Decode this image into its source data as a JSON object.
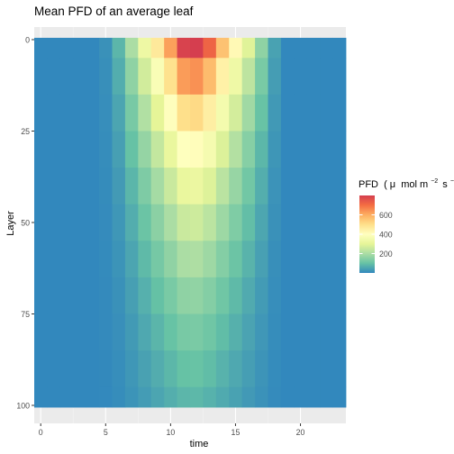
{
  "chart_data": {
    "type": "heatmap",
    "title": "Mean PFD of an average leaf",
    "xlabel": "time",
    "ylabel": "Layer",
    "x_ticks": [
      "0",
      "5",
      "10",
      "15",
      "20"
    ],
    "y_ticks": [
      "0",
      "25",
      "50",
      "75",
      "100"
    ],
    "legend": {
      "title_main": "PFD",
      "title_unit_prefix": "(",
      "title_unit_mu": "μ",
      "title_unit_mol": "mol m",
      "title_sup_m": "−2",
      "title_unit_s": "s",
      "title_sup_s": "−1",
      "title_unit_suffix": ")",
      "ticks": [
        {
          "label": "200",
          "value": 200
        },
        {
          "label": "400",
          "value": 400
        },
        {
          "label": "600",
          "value": 600
        }
      ],
      "range": [
        0,
        800
      ],
      "placement": "right"
    },
    "xlim": [
      -0.5,
      23.5
    ],
    "ylim": [
      0,
      100
    ],
    "y_reversed": true,
    "grid": true,
    "colors": {
      "panel_bg": "#ebebeb",
      "grid_major": "#ffffff",
      "grid_minor": "#f3f3f3",
      "scale": [
        "#3288bd",
        "#66c2a5",
        "#abdda4",
        "#e6f598",
        "#ffffbf",
        "#fee08b",
        "#fdae61",
        "#f46d43",
        "#d53e4f"
      ]
    },
    "time": [
      0,
      1,
      2,
      3,
      4,
      5,
      6,
      7,
      8,
      9,
      10,
      11,
      12,
      13,
      14,
      15,
      16,
      17,
      18,
      19,
      20,
      21,
      22,
      23
    ],
    "layers_sampled": [
      0,
      10,
      20,
      30,
      40,
      50,
      60,
      70,
      80,
      90,
      100
    ],
    "pfd_top_by_time": [
      0,
      0,
      0,
      0,
      0,
      15,
      80,
      200,
      330,
      470,
      620,
      790,
      810,
      720,
      560,
      420,
      290,
      160,
      45,
      0,
      0,
      0,
      0,
      0
    ],
    "pfd_bottom_by_time": [
      0,
      0,
      0,
      0,
      0,
      2,
      8,
      20,
      35,
      50,
      65,
      80,
      82,
      72,
      58,
      44,
      30,
      17,
      5,
      0,
      0,
      0,
      0,
      0
    ]
  }
}
